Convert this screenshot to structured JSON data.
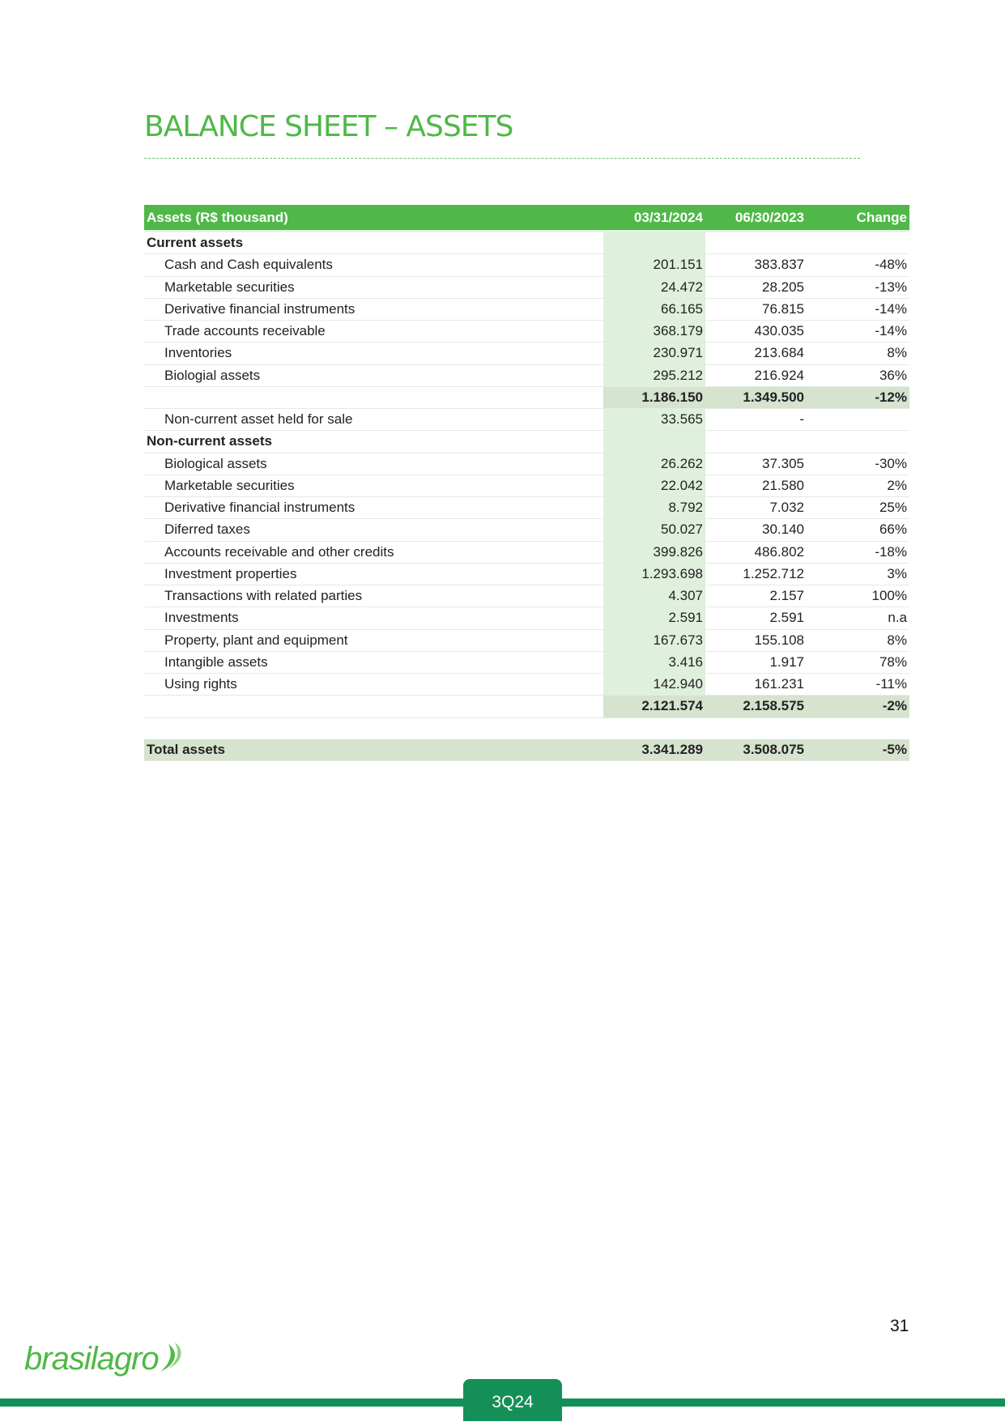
{
  "title": "BALANCE SHEET – ASSETS",
  "table": {
    "headers": [
      "Assets  (R$ thousand)",
      "03/31/2024",
      "06/30/2023",
      "Change"
    ],
    "current_header": "Current assets",
    "current_items": [
      [
        "Cash and Cash equivalents",
        "201.151",
        "383.837",
        "-48%"
      ],
      [
        "Marketable securities",
        "24.472",
        "28.205",
        "-13%"
      ],
      [
        "Derivative financial instruments",
        "66.165",
        "76.815",
        "-14%"
      ],
      [
        "Trade accounts receivable",
        "368.179",
        "430.035",
        "-14%"
      ],
      [
        "Inventories",
        "230.971",
        "213.684",
        "8%"
      ],
      [
        "Biologial assets",
        "295.212",
        "216.924",
        "36%"
      ]
    ],
    "current_subtotal": [
      "",
      "1.186.150",
      "1.349.500",
      "-12%"
    ],
    "held_for_sale": [
      "Non-current asset held for sale",
      "33.565",
      "-",
      ""
    ],
    "noncurrent_header": "Non-current assets",
    "noncurrent_items": [
      [
        "Biological assets",
        "26.262",
        "37.305",
        "-30%"
      ],
      [
        "Marketable securities",
        "22.042",
        "21.580",
        "2%"
      ],
      [
        "Derivative financial instruments",
        "8.792",
        "7.032",
        "25%"
      ],
      [
        "Diferred taxes",
        "50.027",
        "30.140",
        "66%"
      ],
      [
        "Accounts receivable and other credits",
        "399.826",
        "486.802",
        "-18%"
      ],
      [
        "Investment properties",
        "1.293.698",
        "1.252.712",
        "3%"
      ],
      [
        "Transactions with related parties",
        "4.307",
        "2.157",
        "100%"
      ],
      [
        "Investments",
        "2.591",
        "2.591",
        "n.a"
      ],
      [
        "Property, plant and equipment",
        "167.673",
        "155.108",
        "8%"
      ],
      [
        "Intangible assets",
        "3.416",
        "1.917",
        "78%"
      ],
      [
        "Using rights",
        "142.940",
        "161.231",
        "-11%"
      ]
    ],
    "noncurrent_subtotal": [
      "",
      "2.121.574",
      "2.158.575",
      "-2%"
    ],
    "total": [
      "Total assets",
      "3.341.289",
      "3.508.075",
      "-5%"
    ]
  },
  "footer": {
    "page_number": "31",
    "logo_text": "brasilagro",
    "quarter": "3Q24"
  },
  "colors": {
    "accent": "#4fb848",
    "footer": "#158f58",
    "highlight": "#dff0dc",
    "subtotal": "#d6e3cf"
  }
}
